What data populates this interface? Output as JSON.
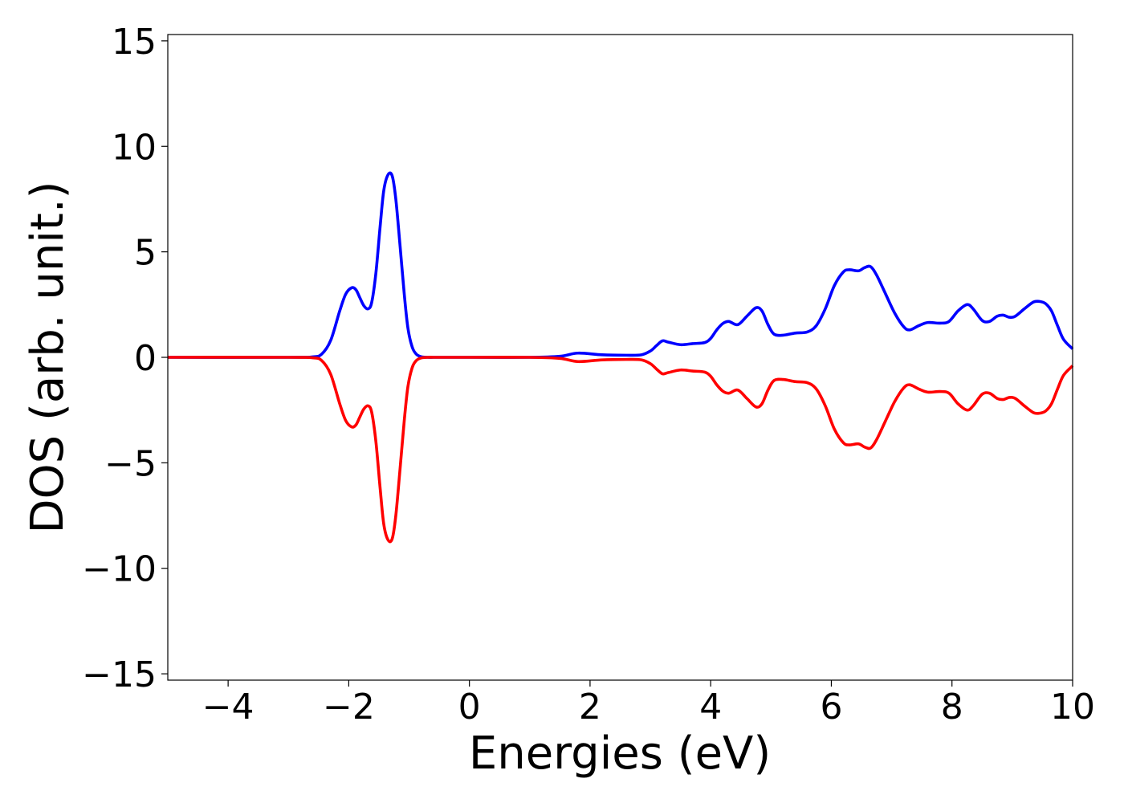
{
  "chart_data": {
    "type": "line",
    "title": "",
    "xlabel": "Energies (eV)",
    "ylabel": "DOS (arb. unit.)",
    "xlim": [
      -5,
      10
    ],
    "ylim": [
      -15.3,
      15.3
    ],
    "xticks": [
      -4,
      -2,
      0,
      2,
      4,
      6,
      8,
      10
    ],
    "yticks": [
      -15,
      -10,
      -5,
      0,
      5,
      10,
      15
    ],
    "xtick_labels": [
      "−4",
      "−2",
      "0",
      "2",
      "4",
      "6",
      "8",
      "10"
    ],
    "ytick_labels": [
      "−15",
      "−10",
      "−5",
      "0",
      "5",
      "10",
      "15"
    ],
    "grid": false,
    "legend": "none",
    "series": [
      {
        "color": "#0000ff",
        "x": [
          -5.0,
          -3.0,
          -2.6,
          -2.45,
          -2.3,
          -2.15,
          -2.05,
          -1.95,
          -1.88,
          -1.82,
          -1.75,
          -1.68,
          -1.62,
          -1.55,
          -1.48,
          -1.42,
          -1.35,
          -1.28,
          -1.22,
          -1.15,
          -1.08,
          -1.02,
          -0.95,
          -0.88,
          -0.8,
          -0.7,
          -0.6,
          -0.5,
          0.0,
          1.0,
          1.5,
          1.8,
          2.2,
          2.6,
          2.85,
          3.0,
          3.1,
          3.2,
          3.3,
          3.5,
          3.7,
          3.9,
          4.0,
          4.1,
          4.2,
          4.3,
          4.45,
          4.6,
          4.75,
          4.85,
          4.95,
          5.05,
          5.2,
          5.4,
          5.6,
          5.75,
          5.9,
          6.05,
          6.2,
          6.3,
          6.45,
          6.55,
          6.65,
          6.75,
          6.9,
          7.05,
          7.2,
          7.3,
          7.45,
          7.6,
          7.8,
          7.95,
          8.1,
          8.25,
          8.35,
          8.5,
          8.62,
          8.75,
          8.85,
          8.95,
          9.05,
          9.2,
          9.35,
          9.45,
          9.55,
          9.65,
          9.75,
          9.85,
          10.0
        ],
        "y": [
          0.0,
          0.0,
          0.02,
          0.15,
          0.8,
          2.2,
          3.0,
          3.3,
          3.2,
          2.85,
          2.45,
          2.3,
          2.6,
          4.0,
          6.2,
          7.9,
          8.65,
          8.6,
          7.5,
          5.3,
          3.0,
          1.4,
          0.5,
          0.15,
          0.03,
          0.0,
          0.0,
          0.0,
          0.0,
          0.0,
          0.05,
          0.2,
          0.12,
          0.1,
          0.12,
          0.3,
          0.55,
          0.78,
          0.72,
          0.6,
          0.65,
          0.7,
          0.9,
          1.3,
          1.6,
          1.7,
          1.55,
          1.95,
          2.35,
          2.2,
          1.55,
          1.1,
          1.05,
          1.15,
          1.2,
          1.5,
          2.3,
          3.4,
          4.05,
          4.15,
          4.1,
          4.25,
          4.3,
          3.9,
          3.0,
          2.1,
          1.45,
          1.3,
          1.5,
          1.65,
          1.62,
          1.7,
          2.2,
          2.5,
          2.3,
          1.75,
          1.7,
          1.95,
          2.0,
          1.9,
          1.95,
          2.3,
          2.62,
          2.65,
          2.55,
          2.2,
          1.5,
          0.85,
          0.4
        ]
      },
      {
        "color": "#ff0000",
        "x": [
          -5.0,
          -3.0,
          -2.6,
          -2.45,
          -2.3,
          -2.15,
          -2.05,
          -1.95,
          -1.88,
          -1.82,
          -1.75,
          -1.68,
          -1.62,
          -1.55,
          -1.48,
          -1.42,
          -1.35,
          -1.28,
          -1.22,
          -1.15,
          -1.08,
          -1.02,
          -0.95,
          -0.88,
          -0.8,
          -0.7,
          -0.6,
          -0.5,
          0.0,
          1.0,
          1.5,
          1.8,
          2.2,
          2.6,
          2.85,
          3.0,
          3.1,
          3.2,
          3.3,
          3.5,
          3.7,
          3.9,
          4.0,
          4.1,
          4.2,
          4.3,
          4.45,
          4.6,
          4.75,
          4.85,
          4.95,
          5.05,
          5.2,
          5.4,
          5.6,
          5.75,
          5.9,
          6.05,
          6.2,
          6.3,
          6.45,
          6.55,
          6.65,
          6.75,
          6.9,
          7.05,
          7.2,
          7.3,
          7.45,
          7.6,
          7.8,
          7.95,
          8.1,
          8.25,
          8.35,
          8.5,
          8.62,
          8.75,
          8.85,
          8.95,
          9.05,
          9.2,
          9.35,
          9.45,
          9.55,
          9.65,
          9.75,
          9.85,
          10.0
        ],
        "y": [
          0.0,
          0.0,
          -0.02,
          -0.15,
          -0.8,
          -2.2,
          -3.0,
          -3.3,
          -3.2,
          -2.85,
          -2.45,
          -2.3,
          -2.6,
          -4.0,
          -6.2,
          -7.9,
          -8.65,
          -8.6,
          -7.5,
          -5.3,
          -3.0,
          -1.4,
          -0.5,
          -0.15,
          -0.03,
          0.0,
          0.0,
          0.0,
          0.0,
          0.0,
          -0.05,
          -0.2,
          -0.12,
          -0.1,
          -0.12,
          -0.3,
          -0.55,
          -0.78,
          -0.72,
          -0.6,
          -0.65,
          -0.7,
          -0.9,
          -1.3,
          -1.6,
          -1.7,
          -1.55,
          -1.95,
          -2.35,
          -2.2,
          -1.55,
          -1.1,
          -1.05,
          -1.15,
          -1.2,
          -1.5,
          -2.3,
          -3.4,
          -4.05,
          -4.15,
          -4.1,
          -4.25,
          -4.3,
          -3.9,
          -3.0,
          -2.1,
          -1.45,
          -1.3,
          -1.5,
          -1.65,
          -1.62,
          -1.7,
          -2.2,
          -2.5,
          -2.3,
          -1.75,
          -1.7,
          -1.95,
          -2.0,
          -1.9,
          -1.95,
          -2.3,
          -2.62,
          -2.65,
          -2.55,
          -2.2,
          -1.5,
          -0.85,
          -0.4
        ]
      }
    ]
  }
}
